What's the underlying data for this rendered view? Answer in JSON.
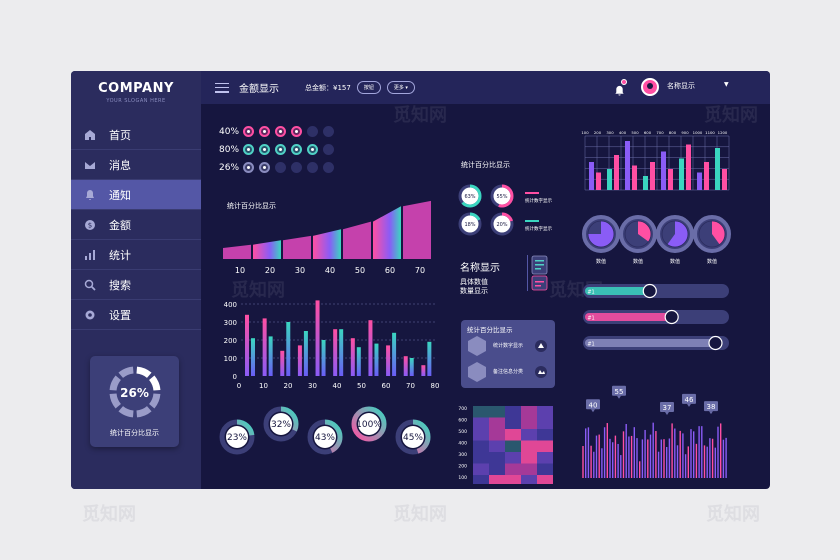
{
  "sidebar": {
    "logo": "COMPANY",
    "slogan": "YOUR SLOGAN HERE",
    "items": [
      {
        "label": "首页",
        "icon": "home-icon"
      },
      {
        "label": "消息",
        "icon": "mail-icon"
      },
      {
        "label": "通知",
        "icon": "bell-icon",
        "active": true
      },
      {
        "label": "金额",
        "icon": "dollar-icon"
      },
      {
        "label": "统计",
        "icon": "bar-chart-icon"
      },
      {
        "label": "搜索",
        "icon": "search-icon"
      },
      {
        "label": "设置",
        "icon": "gear-icon"
      }
    ],
    "stat_card": {
      "percent": "26%",
      "label": "统计百分比显示",
      "value": 0.26
    }
  },
  "topbar": {
    "title": "金额显示",
    "total": "总金额：¥157",
    "btn1": "按钮",
    "btn2": "更多 ▾",
    "username": "名称显示"
  },
  "percent_rows": [
    {
      "label": "40%",
      "on": 4,
      "total": 6,
      "color": "#ff4fa3"
    },
    {
      "label": "80%",
      "on": 5,
      "total": 6,
      "color": "#4fd1c5"
    },
    {
      "label": "26%",
      "on": 2,
      "total": 6,
      "color": "#8a8cbf"
    }
  ],
  "area_chart": {
    "title": "统计百分比显示",
    "categories": [
      "10",
      "20",
      "30",
      "40",
      "50",
      "60",
      "70"
    ],
    "values": [
      10,
      13,
      17,
      21,
      27,
      34,
      48
    ]
  },
  "bar_chart": {
    "yticks": [
      "400",
      "300",
      "200",
      "100",
      "0"
    ],
    "xticks": [
      "0",
      "10",
      "20",
      "30",
      "40",
      "50",
      "60",
      "70",
      "80"
    ],
    "pairs": [
      [
        340,
        210
      ],
      [
        320,
        220
      ],
      [
        140,
        300
      ],
      [
        170,
        250
      ],
      [
        420,
        200
      ],
      [
        260,
        260
      ],
      [
        210,
        160
      ],
      [
        310,
        180
      ],
      [
        170,
        240
      ],
      [
        110,
        100
      ],
      [
        60,
        190
      ]
    ]
  },
  "donuts": [
    {
      "label": "23%",
      "value": 23
    },
    {
      "label": "32%",
      "value": 32
    },
    {
      "label": "43%",
      "value": 43
    },
    {
      "label": "100%",
      "value": 100
    },
    {
      "label": "45%",
      "value": 45
    }
  ],
  "mini_rings": {
    "title": "统计百分比显示",
    "rings": [
      {
        "label": "63%",
        "value": 63
      },
      {
        "label": "55%",
        "value": 55
      },
      {
        "label": "18%",
        "value": 18
      },
      {
        "label": "20%",
        "value": 20
      }
    ],
    "legend": [
      "统计数字显示",
      "统计数字显示"
    ]
  },
  "name_block": {
    "title": "名称显示",
    "line1": "具体数值",
    "line2": "数量显示"
  },
  "info_card": {
    "title": "统计百分比显示",
    "item1": "统计数字显示",
    "item2": "备注信息分类"
  },
  "top_bar_chart": {
    "xticks": [
      "100",
      "200",
      "300",
      "400",
      "500",
      "600",
      "700",
      "800",
      "900",
      "1000",
      "1100",
      "1200"
    ],
    "values": [
      [
        40,
        25
      ],
      [
        30,
        50
      ],
      [
        70,
        35
      ],
      [
        20,
        40
      ],
      [
        55,
        30
      ],
      [
        45,
        65
      ],
      [
        25,
        40
      ],
      [
        60,
        30
      ]
    ]
  },
  "pie_rings": [
    {
      "label": "数值",
      "value": 75
    },
    {
      "label": "数值",
      "value": 35
    },
    {
      "label": "数值",
      "value": 60
    },
    {
      "label": "数值",
      "value": 40
    }
  ],
  "sliders": [
    {
      "tag": "#1",
      "value": 0.43
    },
    {
      "tag": "#1",
      "value": 0.58
    },
    {
      "tag": "#1",
      "value": 0.88
    }
  ],
  "heatmap": {
    "yticks": [
      "700",
      "600",
      "500",
      "400",
      "300",
      "200",
      "100"
    ]
  },
  "spike_chart": {
    "labels": [
      "40",
      "55",
      "37",
      "46",
      "38"
    ],
    "values": [
      40,
      55,
      37,
      46,
      38
    ]
  },
  "watermark": "觅知网",
  "colors": {
    "pink": "#ff4fa3",
    "purple": "#8a5cf6",
    "teal": "#3ad6c0",
    "bg": "#16163f"
  }
}
